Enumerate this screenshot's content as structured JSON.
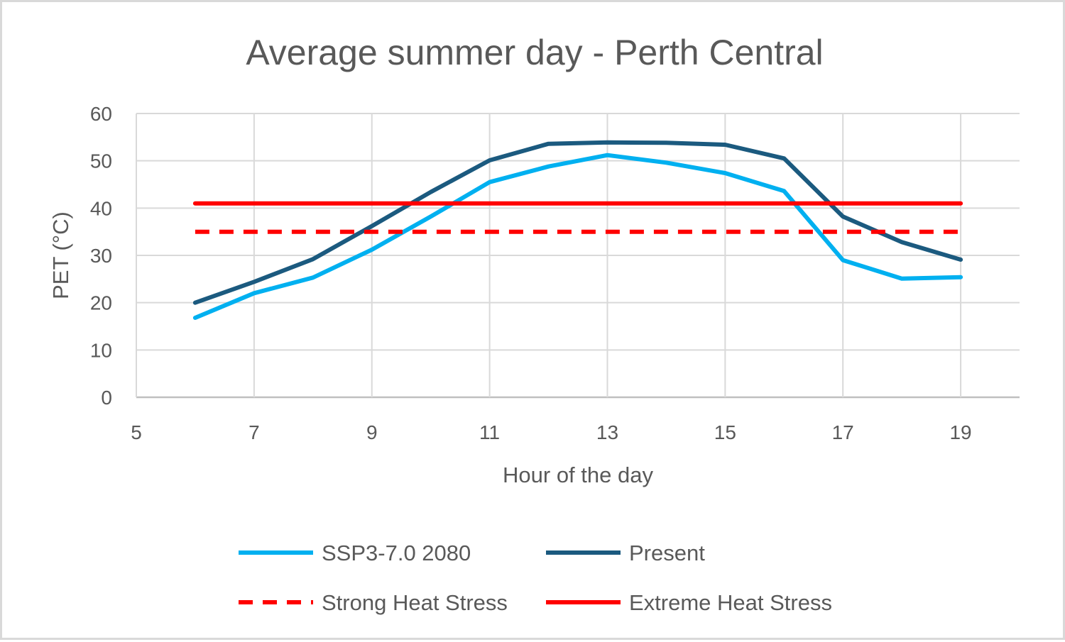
{
  "chart_data": {
    "type": "line",
    "title": "Average summer day - Perth Central",
    "xlabel": "Hour of the day",
    "ylabel": "PET (°C)",
    "xlim": [
      5,
      20
    ],
    "ylim": [
      0,
      60
    ],
    "xticks": [
      5,
      7,
      9,
      11,
      13,
      15,
      17,
      19
    ],
    "yticks": [
      0,
      10,
      20,
      30,
      40,
      50,
      60
    ],
    "grid": true,
    "legend_position": "bottom",
    "series": [
      {
        "name": "SSP3-7.0 2080",
        "color": "#00b0f0",
        "style": "solid",
        "x": [
          6,
          7,
          8,
          9,
          10,
          11,
          12,
          13,
          14,
          15,
          16,
          17,
          18,
          19
        ],
        "y": [
          16.8,
          22,
          25.3,
          31.2,
          38.2,
          45.5,
          48.8,
          51.2,
          49.6,
          47.4,
          43.6,
          29,
          25.1,
          25.4
        ]
      },
      {
        "name": "Present",
        "color": "#1b5a7f",
        "style": "solid",
        "x": [
          6,
          7,
          8,
          9,
          10,
          11,
          12,
          13,
          14,
          15,
          16,
          17,
          18,
          19
        ],
        "y": [
          20,
          24.4,
          29.2,
          36.2,
          43.4,
          50.1,
          53.6,
          53.9,
          53.8,
          53.4,
          50.5,
          38.2,
          32.8,
          29.1
        ]
      },
      {
        "name": "Strong Heat Stress",
        "color": "#ff0000",
        "style": "dashed",
        "x": [
          6,
          19
        ],
        "y": [
          35,
          35
        ]
      },
      {
        "name": "Extreme Heat Stress",
        "color": "#ff0000",
        "style": "solid",
        "x": [
          6,
          19
        ],
        "y": [
          41,
          41
        ]
      }
    ],
    "legend_order": [
      "SSP3-7.0 2080",
      "Present",
      "Strong Heat Stress",
      "Extreme Heat Stress"
    ]
  }
}
